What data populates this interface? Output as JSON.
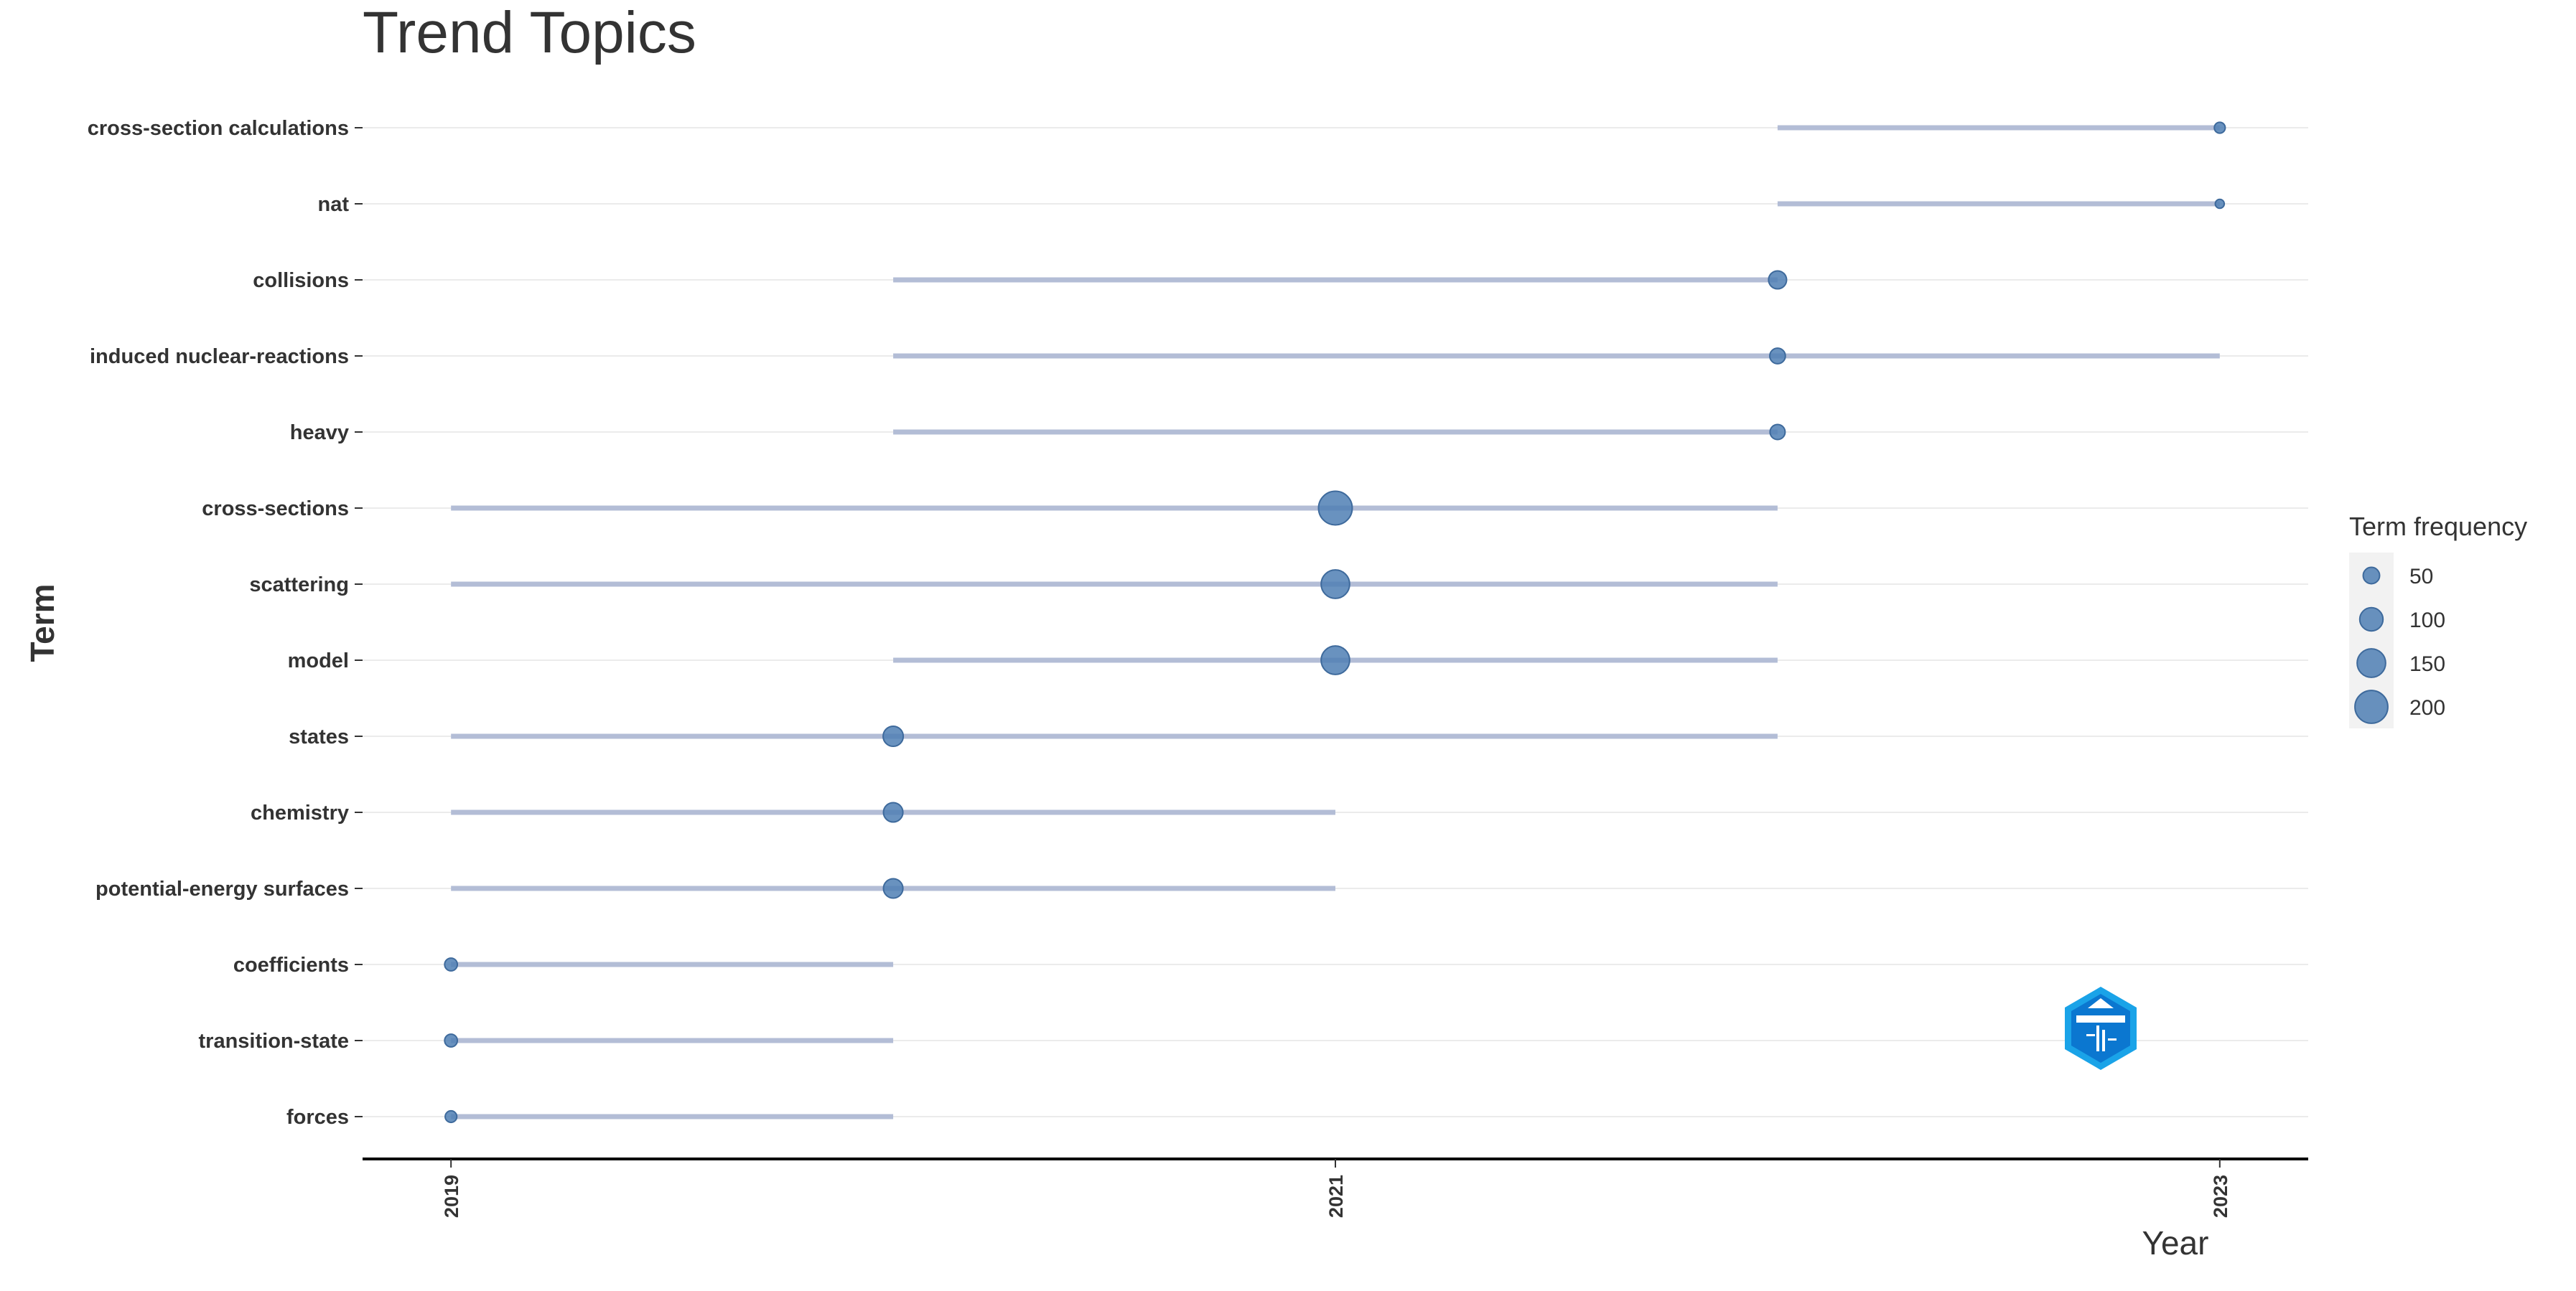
{
  "chart_data": {
    "type": "scatter",
    "title": "Trend Topics",
    "xlabel": "Year",
    "ylabel": "Term",
    "x_ticks": [
      2019,
      2021,
      2023
    ],
    "xlim": [
      2018.8,
      2023.2
    ],
    "grid": "horizontal",
    "legend": {
      "title": "Term frequency",
      "placement": "right",
      "entries": [
        {
          "label": "50",
          "value": 50
        },
        {
          "label": "100",
          "value": 100
        },
        {
          "label": "150",
          "value": 150
        },
        {
          "label": "200",
          "value": 200
        }
      ]
    },
    "terms": [
      {
        "term": "cross-section calculations",
        "start": 2022,
        "end": 2023,
        "median": 2023,
        "freq": 22
      },
      {
        "term": "nat",
        "start": 2022,
        "end": 2023,
        "median": 2023,
        "freq": 15
      },
      {
        "term": "collisions",
        "start": 2020,
        "end": 2022,
        "median": 2022,
        "freq": 60
      },
      {
        "term": "induced nuclear-reactions",
        "start": 2020,
        "end": 2023,
        "median": 2022,
        "freq": 45
      },
      {
        "term": "heavy",
        "start": 2020,
        "end": 2022,
        "median": 2022,
        "freq": 42
      },
      {
        "term": "cross-sections",
        "start": 2019,
        "end": 2022,
        "median": 2021,
        "freq": 210
      },
      {
        "term": "scattering",
        "start": 2019,
        "end": 2022,
        "median": 2021,
        "freq": 150
      },
      {
        "term": "model",
        "start": 2020,
        "end": 2022,
        "median": 2021,
        "freq": 150
      },
      {
        "term": "states",
        "start": 2019,
        "end": 2022,
        "median": 2020,
        "freq": 75
      },
      {
        "term": "chemistry",
        "start": 2019,
        "end": 2021,
        "median": 2020,
        "freq": 70
      },
      {
        "term": "potential-energy surfaces",
        "start": 2019,
        "end": 2021,
        "median": 2020,
        "freq": 70
      },
      {
        "term": "coefficients",
        "start": 2019,
        "end": 2020,
        "median": 2019,
        "freq": 30
      },
      {
        "term": "transition-state",
        "start": 2019,
        "end": 2020,
        "median": 2019,
        "freq": 30
      },
      {
        "term": "forces",
        "start": 2019,
        "end": 2020,
        "median": 2019,
        "freq": 25
      }
    ],
    "colors": {
      "point": "#4f7fb4",
      "segment": "#b3bdd6",
      "grid": "#ebebeb",
      "axis": "#000000"
    }
  },
  "logo": {
    "name": "bibliometrix-logo-icon"
  }
}
